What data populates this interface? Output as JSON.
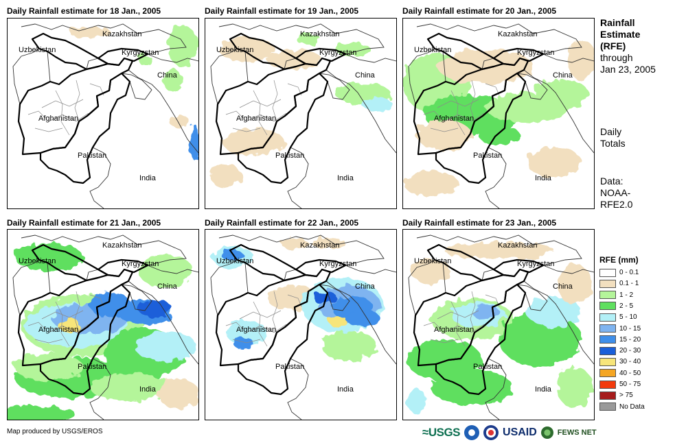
{
  "panels": [
    {
      "title": "Daily Rainfall estimate for 18 Jan., 2005",
      "day": "18"
    },
    {
      "title": "Daily Rainfall estimate for 19 Jan., 2005",
      "day": "19"
    },
    {
      "title": "Daily Rainfall estimate for 20 Jan., 2005",
      "day": "20"
    },
    {
      "title": "Daily Rainfall estimate for 21 Jan., 2005",
      "day": "21"
    },
    {
      "title": "Daily Rainfall estimate for 22 Jan., 2005",
      "day": "22"
    },
    {
      "title": "Daily Rainfall estimate for 23 Jan., 2005",
      "day": "23"
    }
  ],
  "place_labels": {
    "kazakhstan": "Kazakhstan",
    "uzbekistan": "Uzbekistan",
    "kyrgyzstan": "Kyrgyzstan",
    "china": "China",
    "afghanistan": "Afghanistan",
    "pakistan": "Pakistan",
    "india": "India"
  },
  "side": {
    "title_bold_1": "Rainfall",
    "title_bold_2": "Estimate",
    "title_bold_3": "(RFE)",
    "title_line_4": "through",
    "title_line_5": "Jan 23, 2005",
    "daily_1": "Daily",
    "daily_2": "Totals",
    "data_1": "Data:",
    "data_2": "NOAA-",
    "data_3": "RFE2.0"
  },
  "legend": {
    "title": "RFE (mm)",
    "items": [
      {
        "label": "0 - 0.1",
        "color": "#ffffff"
      },
      {
        "label": "0.1 - 1",
        "color": "#f2dfbf"
      },
      {
        "label": "1 - 2",
        "color": "#b4f59a"
      },
      {
        "label": "2 - 5",
        "color": "#5fdf5f"
      },
      {
        "label": "5 - 10",
        "color": "#b3f0f7"
      },
      {
        "label": "10 - 15",
        "color": "#7fb4f0"
      },
      {
        "label": "15 - 20",
        "color": "#3f8fea"
      },
      {
        "label": "20 - 30",
        "color": "#1a5fd9"
      },
      {
        "label": "30 - 40",
        "color": "#f7e57a"
      },
      {
        "label": "40 - 50",
        "color": "#f5a623"
      },
      {
        "label": "50 - 75",
        "color": "#f23a0c"
      },
      {
        "label": "> 75",
        "color": "#a61c1c"
      },
      {
        "label": "No Data",
        "color": "#9a9a9a"
      }
    ]
  },
  "credit": "Map produced by USGS/EROS",
  "logos": {
    "usgs": "≈USGS",
    "usaid": "USAID",
    "fews": "FEWS NET"
  }
}
